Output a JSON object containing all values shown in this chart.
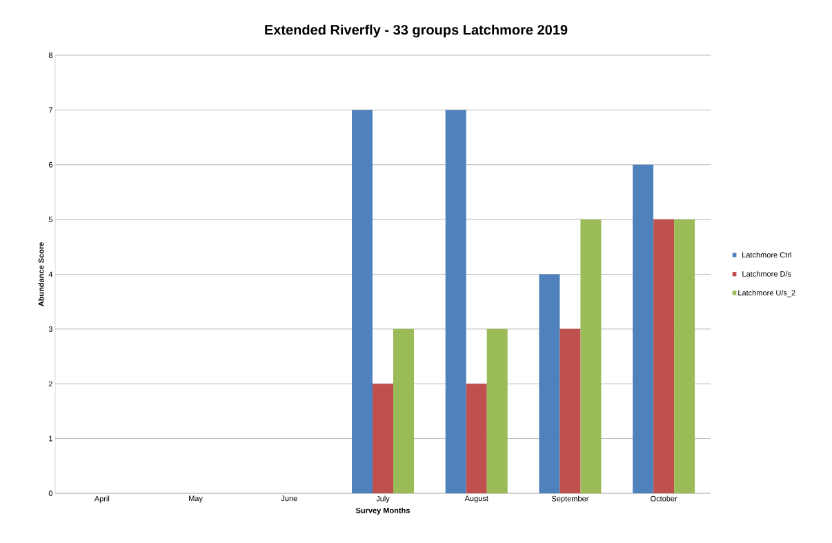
{
  "chart_data": {
    "type": "bar",
    "title": "Extended Riverfly - 33 groups Latchmore 2019",
    "xlabel": "Survey Months",
    "ylabel": "Abundance  Score",
    "categories": [
      "April",
      "May",
      "June",
      "July",
      "August",
      "September",
      "October"
    ],
    "series": [
      {
        "name": "Latchmore  Ctrl",
        "color": "#4f81bd",
        "values": [
          null,
          null,
          null,
          7,
          7,
          4,
          6
        ]
      },
      {
        "name": "Latchmore  D/s",
        "color": "#c0504d",
        "values": [
          null,
          null,
          null,
          2,
          2,
          3,
          5
        ]
      },
      {
        "name": "Latchmore  U/s_2",
        "color": "#9bbb59",
        "values": [
          null,
          null,
          null,
          3,
          3,
          5,
          5
        ]
      }
    ],
    "ylim": [
      0,
      8
    ],
    "yticks": [
      0,
      1,
      2,
      3,
      4,
      5,
      6,
      7,
      8
    ],
    "grid": "y",
    "legend": "right"
  }
}
